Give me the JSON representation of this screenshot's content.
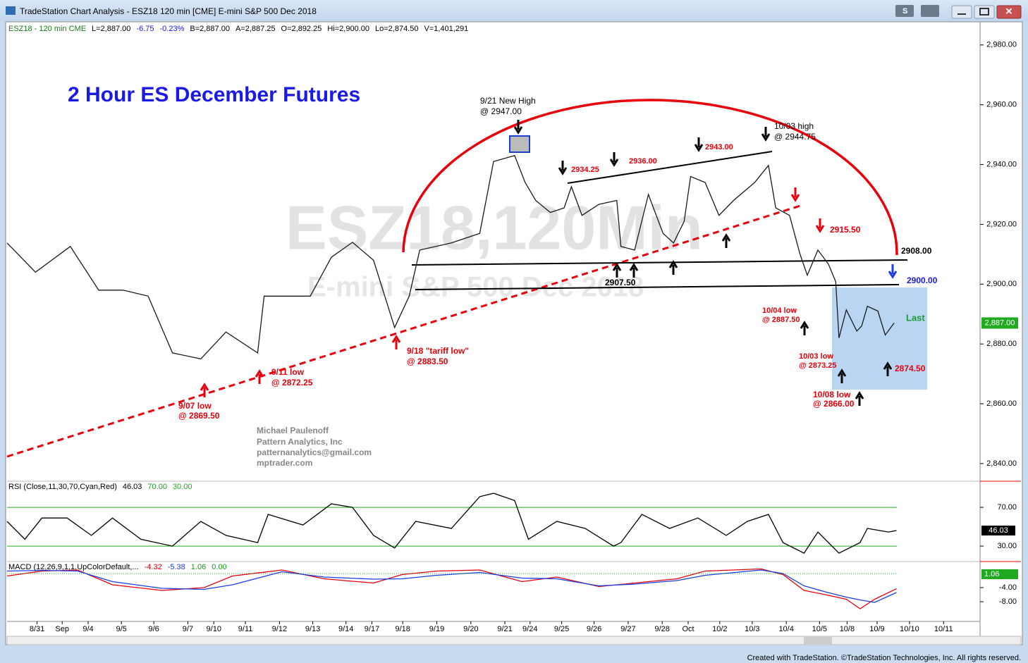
{
  "window_title": "TradeStation Chart Analysis - ESZ18 120 min [CME] E-mini S&P 500 Dec 2018",
  "header": [
    "ESZ18 - 120 min  CME",
    "L=2,887.00",
    "-6.75",
    "-0.23%",
    "B=2,887.00",
    "A=2,887.25",
    "O=2,892.25",
    "Hi=2,900.00",
    "Lo=2,874.50",
    "V=1,401,291"
  ],
  "watermark": "ESZ18,120Min",
  "watermark_sub": "E-mini S&P 500 Dec 2018",
  "footer": "Created with TradeStation. ©TradeStation Technologies, Inc. All rights reserved.",
  "chart_data": [
    {
      "type": "line",
      "xlim": [
        0,
        120
      ],
      "x": [
        0,
        3.5,
        7.8,
        11.3,
        14.3,
        17.4,
        20.4,
        23.9,
        27,
        30.9,
        31.7,
        34.8,
        37.4,
        40,
        42.6,
        45.2,
        47.8,
        49.6,
        50.9,
        54.8,
        58.3,
        60,
        62.6,
        63.9,
        65.2,
        67,
        68.7,
        69.6,
        70.9,
        73,
        75.2,
        75.7,
        77.4,
        79.1,
        80.9,
        82.2,
        83.5,
        84.3,
        86.1,
        87.8,
        89.6,
        92.2,
        93.9,
        94.8,
        96.5,
        97.8,
        98.7,
        100,
        101.3,
        102.2,
        102.6,
        103.5,
        104.8,
        105.4,
        106.1,
        107.4,
        108.3,
        109.4
      ],
      "series": [
        {
          "color": "#1a1a1a",
          "values": [
            2913.8,
            2904,
            2912.6,
            2898,
            2898,
            2896,
            2877,
            2875,
            2884,
            2877,
            2896,
            2896,
            2896,
            2909,
            2914,
            2908,
            2885.5,
            2896,
            2911.4,
            2913.8,
            2917,
            2941,
            2943,
            2934,
            2928,
            2924,
            2925.5,
            2932.6,
            2923,
            2926.7,
            2928,
            2912.6,
            2911.4,
            2930,
            2917,
            2913.8,
            2921,
            2936,
            2934,
            2923,
            2928,
            2934,
            2939.7,
            2925.5,
            2923,
            2910,
            2903,
            2911.4,
            2906.7,
            2900.8,
            2882,
            2891.4,
            2884.3,
            2886,
            2892.6,
            2891,
            2883,
            2887
          ]
        }
      ],
      "ylim": [
        2834.8,
        2987.5
      ],
      "yticks": [
        {
          "value": 2840,
          "label": "2,840.00"
        },
        {
          "value": 2860,
          "label": "2,860.00"
        },
        {
          "value": 2880,
          "label": "2,880.00"
        },
        {
          "value": 2900,
          "label": "2,900.00"
        },
        {
          "value": 2920,
          "label": "2,920.00"
        },
        {
          "value": 2940,
          "label": "2,940.00"
        },
        {
          "value": 2960,
          "label": "2,960.00"
        },
        {
          "value": 2980,
          "label": "2,980.00"
        }
      ],
      "last_value": {
        "value": 2887,
        "label": "2,887.00"
      },
      "annotations": [
        "2 Hour ES December Futures",
        "9/21 New High",
        "@ 2947.00",
        "10/03 high",
        "@ 2944.75",
        "2934.25",
        "2936.00",
        "2943.00",
        "2915.50",
        "2908.00",
        "2900.00",
        "2907.50",
        "10/04 low",
        "@ 2887.50",
        "Last",
        "10/03 low",
        "@ 2873.25",
        "2874.50",
        "10/08 low",
        "@ 2866.00",
        "9/18 \"tariff low\"",
        "@ 2883.50",
        "9/11 low",
        "@ 2872.25",
        "9/07 low",
        "@ 2869.50",
        "Michael Paulenoff",
        "Pattern Analytics, Inc",
        "patternanalytics@gmail.com",
        "mptrader.com"
      ]
    },
    {
      "type": "line",
      "legend": [
        "RSI (Close,11,30,70,Cyan,Red)",
        "46.03",
        "70.00",
        "30.00"
      ],
      "xlim": [
        0,
        120
      ],
      "x": [
        0,
        2.2,
        4.3,
        7.4,
        10.4,
        13,
        16.5,
        20.4,
        23.9,
        27,
        30.9,
        32.2,
        36.5,
        40,
        42.6,
        45.2,
        47.8,
        50.4,
        54.8,
        58.3,
        60,
        62.6,
        64.3,
        67.8,
        71.3,
        74.8,
        75.7,
        78.3,
        81.7,
        85.2,
        88.7,
        91.3,
        93.9,
        95.7,
        98.3,
        100,
        102.6,
        105.2,
        106.1,
        108.7,
        109.7
      ],
      "series": [
        {
          "color": "#000000",
          "values": [
            55.5,
            37,
            59,
            59,
            41,
            59,
            37,
            30,
            55.5,
            41,
            33.6,
            62.7,
            51.8,
            73.6,
            70,
            41,
            28,
            55.5,
            48.2,
            81,
            84.5,
            77,
            37,
            55.5,
            48.2,
            30,
            33.6,
            62.7,
            48.2,
            59,
            41,
            55.5,
            62.7,
            33.6,
            22.7,
            44.5,
            22.7,
            33.6,
            48.2,
            44.5,
            46.03
          ]
        }
      ],
      "ylim": [
        15.5,
        95.5
      ],
      "yticks": [
        {
          "value": 30,
          "label": "30.00"
        },
        {
          "value": 70,
          "label": "70.00"
        }
      ],
      "grid_color": "#1faa1f"
    },
    {
      "type": "line",
      "legend": [
        "MACD (12,26,9,1,1,UpColorDefault,...",
        "-4.32",
        "-5.38",
        "1.06",
        "0.00"
      ],
      "xlim": [
        0,
        120
      ],
      "x": [
        0,
        4.3,
        8.7,
        13,
        19.1,
        24.3,
        27.8,
        33.9,
        39.1,
        45.2,
        48.7,
        53,
        58.3,
        63.5,
        67.8,
        73,
        77.4,
        82.6,
        86.1,
        93,
        95.7,
        98.3,
        100.9,
        103.5,
        105.2,
        107,
        109.7
      ],
      "series": [
        {
          "color": "#e8000b",
          "values": [
            -0.7,
            0.7,
            1,
            -3.2,
            -4.8,
            -4,
            -0.7,
            1,
            -1.5,
            -2.7,
            -0.3,
            0.7,
            1,
            -2.3,
            -1,
            -3.7,
            -2.7,
            -1.5,
            0.7,
            1.3,
            -0.3,
            -4.8,
            -6,
            -7.3,
            -10,
            -7.3,
            -4.32
          ]
        },
        {
          "color": "#1a3ee6",
          "values": [
            0.7,
            0.9,
            0.7,
            -2.3,
            -4.2,
            -4.5,
            -3.2,
            0.5,
            -1,
            -1.6,
            -1.5,
            -0.5,
            0.3,
            -1.3,
            -1.5,
            -3.5,
            -3,
            -2,
            -0.5,
            1,
            0,
            -3.5,
            -5.2,
            -6.7,
            -7.5,
            -8.2,
            -5.38
          ]
        }
      ],
      "ylim": [
        -13.2,
        3
      ],
      "yticks": [
        {
          "value": -8,
          "label": "-8.00"
        },
        {
          "value": -4,
          "label": "-4.00"
        }
      ],
      "xticks": [
        {
          "value": 3.7,
          "label": "8/31"
        },
        {
          "value": 6.8,
          "label": "Sep"
        },
        {
          "value": 10,
          "label": "9/4"
        },
        {
          "value": 14.1,
          "label": "9/5"
        },
        {
          "value": 18.1,
          "label": "9/6"
        },
        {
          "value": 22.3,
          "label": "9/7"
        },
        {
          "value": 25.5,
          "label": "9/10"
        },
        {
          "value": 29.4,
          "label": "9/11"
        },
        {
          "value": 33.6,
          "label": "9/12"
        },
        {
          "value": 37.7,
          "label": "9/13"
        },
        {
          "value": 41.8,
          "label": "9/14"
        },
        {
          "value": 45,
          "label": "9/17"
        },
        {
          "value": 48.8,
          "label": "9/18"
        },
        {
          "value": 53,
          "label": "9/19"
        },
        {
          "value": 57.2,
          "label": "9/20"
        },
        {
          "value": 61.4,
          "label": "9/21"
        },
        {
          "value": 64.5,
          "label": "9/24"
        },
        {
          "value": 68.4,
          "label": "9/25"
        },
        {
          "value": 72.4,
          "label": "9/26"
        },
        {
          "value": 76.6,
          "label": "9/27"
        },
        {
          "value": 80.8,
          "label": "9/28"
        },
        {
          "value": 84,
          "label": "Oct"
        },
        {
          "value": 87.9,
          "label": "10/2"
        },
        {
          "value": 91.9,
          "label": "10/3"
        },
        {
          "value": 96.1,
          "label": "10/4"
        },
        {
          "value": 100.2,
          "label": "10/5"
        },
        {
          "value": 103.6,
          "label": "10/8"
        },
        {
          "value": 107.3,
          "label": "10/9"
        },
        {
          "value": 111.3,
          "label": "10/10"
        },
        {
          "value": 115.5,
          "label": "10/11"
        }
      ]
    }
  ]
}
